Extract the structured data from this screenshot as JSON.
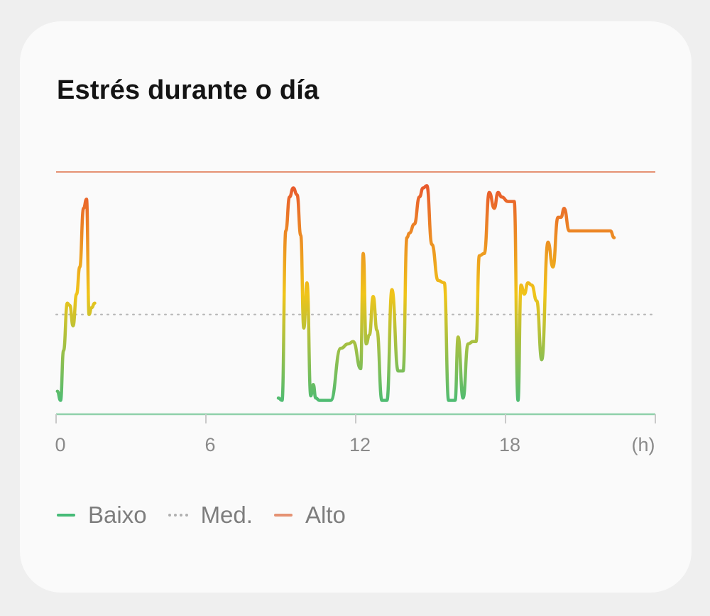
{
  "card": {
    "title": "Estrés durante o día"
  },
  "colors": {
    "low": "#46bb77",
    "med": "#b5b5b5",
    "high": "#e59273",
    "mid_line": "#f0c419",
    "peak_line": "#e8552e"
  },
  "legend": {
    "low": {
      "label": "Baixo",
      "color": "#46bb77"
    },
    "med": {
      "label": "Med.",
      "color": "#b5b5b5"
    },
    "high": {
      "label": "Alto",
      "color": "#e59273"
    }
  },
  "chart_data": {
    "type": "line",
    "x_unit": "(h)",
    "x_ticks": [
      0,
      6,
      12,
      18,
      24
    ],
    "x_tick_labels": [
      "0",
      "6",
      "12",
      "18",
      ""
    ],
    "xlim": [
      0,
      24
    ],
    "ylim": [
      0,
      100
    ],
    "reference_levels": {
      "low": 0,
      "medium": 41,
      "high": 100
    },
    "series": [
      {
        "segment": 1,
        "x": [
          0.05,
          0.18,
          0.3,
          0.45,
          0.55,
          0.68,
          0.82,
          0.95,
          1.1,
          1.22,
          1.32,
          1.42,
          1.55
        ],
        "y": [
          7,
          3,
          25,
          46,
          45,
          36,
          50,
          62,
          88,
          92,
          41,
          44,
          46
        ]
      },
      {
        "segment": 2,
        "x": [
          8.9,
          9.05,
          9.2,
          9.35,
          9.5,
          9.65,
          9.8,
          9.92,
          10.05,
          10.2,
          10.3,
          10.4,
          10.55,
          10.7,
          11.0,
          11.4,
          11.7,
          11.9,
          12.2,
          12.3,
          12.42,
          12.55,
          12.7,
          12.85,
          13.05,
          13.15,
          13.25,
          13.45,
          13.7,
          13.9,
          14.05,
          14.15,
          14.35,
          14.55,
          14.7,
          14.85,
          15.05,
          15.3,
          15.55,
          15.72,
          15.82,
          15.98,
          16.1,
          16.3,
          16.5,
          16.7,
          16.82,
          16.95,
          17.15,
          17.35,
          17.55,
          17.7,
          17.85,
          18.1,
          18.35,
          18.5,
          18.62,
          18.75,
          18.9,
          19.05,
          19.25,
          19.45,
          19.7,
          19.9,
          20.1,
          20.22,
          20.35,
          20.55,
          20.75,
          20.95,
          21.2,
          21.35,
          21.45,
          21.58,
          21.7,
          21.9,
          22.05,
          22.2,
          22.35
        ],
        "y": [
          4,
          3,
          78,
          93,
          97,
          94,
          76,
          35,
          55,
          5,
          10,
          4,
          3,
          3,
          3,
          26,
          28,
          29,
          17,
          68,
          28,
          32,
          49,
          34,
          3,
          3,
          3,
          52,
          16,
          16,
          75,
          77,
          81,
          93,
          97,
          98,
          72,
          56,
          55,
          3,
          3,
          3,
          31,
          4,
          28,
          29,
          29,
          67,
          68,
          95,
          88,
          95,
          93,
          91,
          91,
          3,
          54,
          50,
          55,
          54,
          47,
          21,
          73,
          62,
          84,
          84,
          88,
          78,
          78,
          78,
          78,
          78,
          78,
          78,
          78,
          78,
          78,
          78,
          75
        ]
      }
    ]
  }
}
